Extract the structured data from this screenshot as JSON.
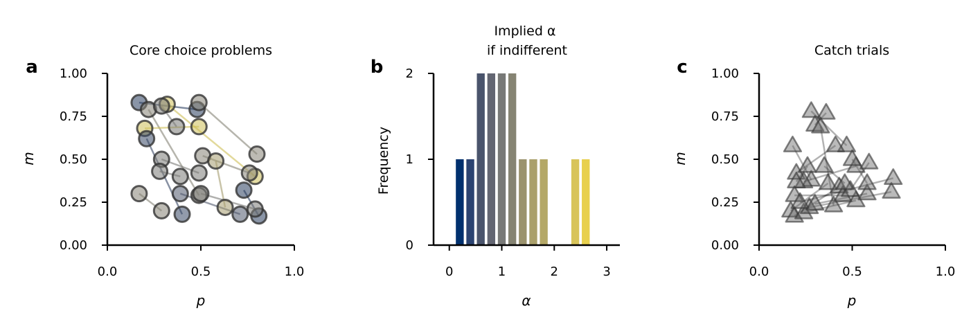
{
  "chart_data": [
    {
      "panel_label": "a",
      "type": "scatter",
      "title": "Core choice problems",
      "xlabel": "p",
      "ylabel": "m",
      "xlim": [
        0,
        1
      ],
      "ylim": [
        0,
        1
      ],
      "xticks": [
        "0.0",
        "0.5",
        "1.0"
      ],
      "yticks": [
        "0.00",
        "0.25",
        "0.50",
        "0.75",
        "1.00"
      ],
      "marker": "circle",
      "colormap": "cividis",
      "pairs": [
        {
          "c": 0.15,
          "a": [
            0.17,
            0.83
          ],
          "b": [
            0.48,
            0.79
          ]
        },
        {
          "c": 0.55,
          "a": [
            0.22,
            0.79
          ],
          "b": [
            0.49,
            0.29
          ]
        },
        {
          "c": 0.85,
          "a": [
            0.2,
            0.68
          ],
          "b": [
            0.49,
            0.69
          ]
        },
        {
          "c": 0.85,
          "a": [
            0.32,
            0.82
          ],
          "b": [
            0.79,
            0.4
          ]
        },
        {
          "c": 0.2,
          "a": [
            0.21,
            0.62
          ],
          "b": [
            0.4,
            0.18
          ]
        },
        {
          "c": 0.5,
          "a": [
            0.29,
            0.81
          ],
          "b": [
            0.37,
            0.69
          ]
        },
        {
          "c": 0.55,
          "a": [
            0.49,
            0.83
          ],
          "b": [
            0.8,
            0.53
          ]
        },
        {
          "c": 0.5,
          "a": [
            0.29,
            0.5
          ],
          "b": [
            0.49,
            0.42
          ]
        },
        {
          "c": 0.5,
          "a": [
            0.28,
            0.43
          ],
          "b": [
            0.39,
            0.4
          ]
        },
        {
          "c": 0.55,
          "a": [
            0.17,
            0.3
          ],
          "b": [
            0.29,
            0.2
          ]
        },
        {
          "c": 0.3,
          "a": [
            0.39,
            0.3
          ],
          "b": [
            0.71,
            0.18
          ]
        },
        {
          "c": 0.55,
          "a": [
            0.51,
            0.52
          ],
          "b": [
            0.76,
            0.42
          ]
        },
        {
          "c": 0.7,
          "a": [
            0.58,
            0.49
          ],
          "b": [
            0.63,
            0.22
          ]
        },
        {
          "c": 0.15,
          "a": [
            0.73,
            0.32
          ],
          "b": [
            0.81,
            0.17
          ]
        },
        {
          "c": 0.5,
          "a": [
            0.5,
            0.3
          ],
          "b": [
            0.79,
            0.21
          ]
        }
      ]
    },
    {
      "panel_label": "b",
      "type": "bar",
      "title": "Implied α\nif indifferent",
      "xlabel": "α",
      "ylabel": "Frequency",
      "xlim": [
        -0.3,
        3.25
      ],
      "ylim": [
        0,
        2
      ],
      "xticks": [
        "0",
        "1",
        "2",
        "3"
      ],
      "yticks": [
        "0",
        "1",
        "2"
      ],
      "bar_width": 0.15,
      "bars": [
        {
          "x": 0.2,
          "value": 1,
          "color": "#00306e"
        },
        {
          "x": 0.4,
          "value": 1,
          "color": "#2b4371"
        },
        {
          "x": 0.6,
          "value": 2,
          "color": "#4a546c"
        },
        {
          "x": 0.8,
          "value": 2,
          "color": "#636672"
        },
        {
          "x": 1.0,
          "value": 2,
          "color": "#787977"
        },
        {
          "x": 1.2,
          "value": 2,
          "color": "#868473"
        },
        {
          "x": 1.4,
          "value": 1,
          "color": "#9b936e"
        },
        {
          "x": 1.6,
          "value": 1,
          "color": "#aaa06b"
        },
        {
          "x": 1.8,
          "value": 1,
          "color": "#b4a867"
        },
        {
          "x": 2.4,
          "value": 1,
          "color": "#d8c45a"
        },
        {
          "x": 2.6,
          "value": 1,
          "color": "#e8d04e"
        }
      ]
    },
    {
      "panel_label": "c",
      "type": "scatter",
      "title": "Catch trials",
      "xlabel": "p",
      "ylabel": "m",
      "xlim": [
        0,
        1
      ],
      "ylim": [
        0,
        1
      ],
      "xticks": [
        "0.0",
        "0.5",
        "1.0"
      ],
      "yticks": [
        "0.00",
        "0.25",
        "0.50",
        "0.75",
        "1.00"
      ],
      "marker": "triangle",
      "color": "#000000",
      "pairs": [
        {
          "a": [
            0.28,
            0.78
          ],
          "b": [
            0.47,
            0.58
          ]
        },
        {
          "a": [
            0.3,
            0.7
          ],
          "b": [
            0.36,
            0.77
          ]
        },
        {
          "a": [
            0.33,
            0.69
          ],
          "b": [
            0.4,
            0.23
          ]
        },
        {
          "a": [
            0.18,
            0.58
          ],
          "b": [
            0.28,
            0.38
          ]
        },
        {
          "a": [
            0.2,
            0.42
          ],
          "b": [
            0.41,
            0.58
          ]
        },
        {
          "a": [
            0.24,
            0.37
          ],
          "b": [
            0.52,
            0.46
          ]
        },
        {
          "a": [
            0.2,
            0.37
          ],
          "b": [
            0.26,
            0.46
          ]
        },
        {
          "a": [
            0.17,
            0.2
          ],
          "b": [
            0.37,
            0.36
          ]
        },
        {
          "a": [
            0.19,
            0.17
          ],
          "b": [
            0.43,
            0.34
          ]
        },
        {
          "a": [
            0.24,
            0.19
          ],
          "b": [
            0.52,
            0.26
          ]
        },
        {
          "a": [
            0.19,
            0.29
          ],
          "b": [
            0.45,
            0.29
          ]
        },
        {
          "a": [
            0.27,
            0.22
          ],
          "b": [
            0.71,
            0.31
          ]
        },
        {
          "a": [
            0.3,
            0.24
          ],
          "b": [
            0.58,
            0.3
          ]
        },
        {
          "a": [
            0.49,
            0.32
          ],
          "b": [
            0.59,
            0.48
          ]
        },
        {
          "a": [
            0.5,
            0.5
          ],
          "b": [
            0.58,
            0.36
          ]
        },
        {
          "a": [
            0.35,
            0.46
          ],
          "b": [
            0.46,
            0.36
          ]
        },
        {
          "a": [
            0.22,
            0.25
          ],
          "b": [
            0.72,
            0.39
          ]
        }
      ]
    }
  ]
}
